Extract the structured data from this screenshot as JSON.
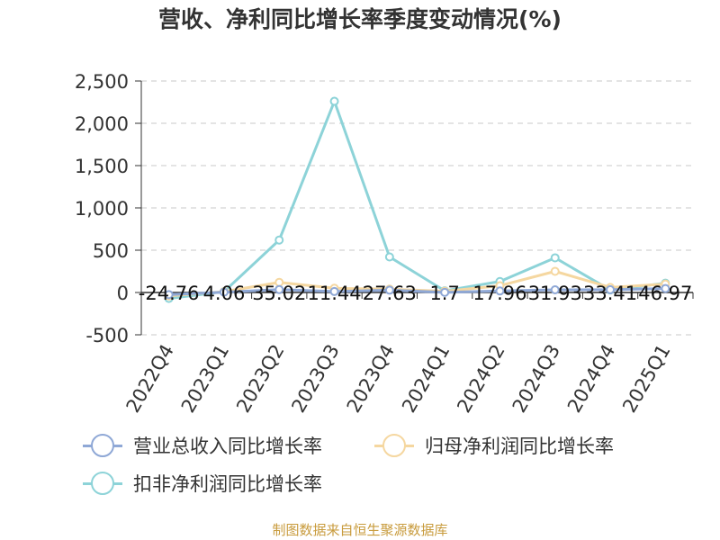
{
  "chart_data": {
    "type": "line",
    "title": "营收、净利同比增长率季度变动情况(%)",
    "categories": [
      "2022Q4",
      "2023Q1",
      "2023Q2",
      "2023Q3",
      "2023Q4",
      "2024Q1",
      "2024Q2",
      "2024Q3",
      "2024Q4",
      "2025Q1"
    ],
    "ylim": [
      -500,
      2500
    ],
    "yticks": [
      -500,
      0,
      500,
      1000,
      1500,
      2000,
      2500
    ],
    "ytick_labels": [
      "-500",
      "0",
      "500",
      "1,000",
      "1,500",
      "2,000",
      "2,500"
    ],
    "grid": true,
    "legend_position": "bottom",
    "series": [
      {
        "name": "营业总收入同比增长率",
        "color": "#8fa8d6",
        "values": [
          -24.76,
          4.06,
          35.02,
          11.44,
          27.63,
          1.7,
          17.96,
          31.93,
          33.41,
          46.97
        ],
        "labels": [
          "-24.76",
          "4.06",
          "35.02",
          "11.44",
          "27.63",
          "1.7",
          "17.96",
          "31.93",
          "33.41",
          "46.97"
        ]
      },
      {
        "name": "归母净利润同比增长率",
        "color": "#f5d7a0",
        "values": [
          -40,
          10,
          120,
          50,
          40,
          15,
          80,
          250,
          60,
          100
        ]
      },
      {
        "name": "扣非净利润同比增长率",
        "color": "#8dd3d8",
        "values": [
          -70,
          10,
          620,
          2260,
          420,
          20,
          130,
          410,
          30,
          110
        ]
      }
    ]
  },
  "source": "制图数据来自恒生聚源数据库"
}
